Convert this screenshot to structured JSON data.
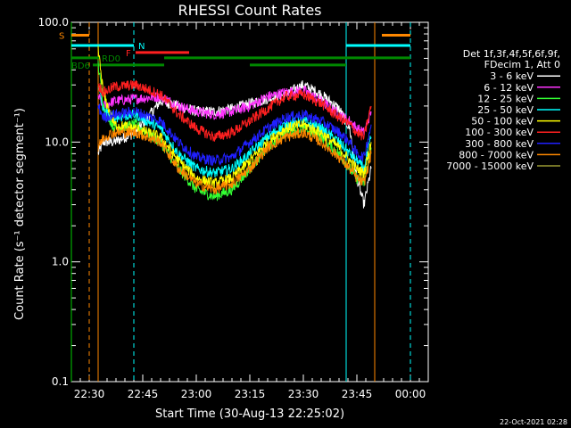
{
  "chart_data": {
    "type": "line",
    "title": "RHESSI Count Rates",
    "xlabel": "Start Time (30-Aug-13 22:25:02)",
    "ylabel": "Count Rate (s⁻¹ detector segment⁻¹)",
    "x_unit": "minutes after 22:25:02",
    "xlim": [
      0,
      100
    ],
    "ylim": [
      0.1,
      100
    ],
    "yscale": "log",
    "x_ticks": [
      {
        "t": 5,
        "label": "22:30"
      },
      {
        "t": 20,
        "label": "22:45"
      },
      {
        "t": 35,
        "label": "23:00"
      },
      {
        "t": 50,
        "label": "23:15"
      },
      {
        "t": 65,
        "label": "23:30"
      },
      {
        "t": 80,
        "label": "23:45"
      },
      {
        "t": 95,
        "label": "00:00"
      }
    ],
    "y_ticks": [
      {
        "v": 0.1,
        "label": "0.1"
      },
      {
        "v": 1,
        "label": "1.0"
      },
      {
        "v": 10,
        "label": "10.0"
      },
      {
        "v": 100,
        "label": "100.0"
      }
    ],
    "legend": {
      "position": "right",
      "header": [
        "Det 1f,3f,4f,5f,6f,9f,",
        "FDecim 1, Att 0"
      ]
    },
    "series": [
      {
        "name": "3 - 6 keV",
        "color": "#ffffff",
        "x": [
          7.5,
          9,
          12,
          18,
          25,
          30,
          35,
          40,
          45,
          50,
          55,
          60,
          65,
          70,
          75,
          78,
          80,
          82,
          84
        ],
        "y": [
          8,
          10,
          10,
          12,
          22,
          20,
          18,
          18,
          19,
          21,
          23,
          25,
          30,
          25,
          19,
          13,
          5,
          3,
          6
        ]
      },
      {
        "name": "6 - 12 keV",
        "color": "#ff33ff",
        "x": [
          7.5,
          9,
          12,
          18,
          25,
          30,
          35,
          40,
          45,
          50,
          55,
          60,
          65,
          70,
          75,
          78,
          80,
          82,
          84
        ],
        "y": [
          24,
          20,
          22,
          23,
          24,
          20,
          18,
          17,
          18,
          20,
          24,
          26,
          27,
          22,
          17,
          15,
          13,
          12,
          18
        ]
      },
      {
        "name": "12 - 25 keV",
        "color": "#33ff33",
        "x": [
          7.5,
          9,
          12,
          18,
          25,
          30,
          35,
          40,
          45,
          50,
          55,
          60,
          65,
          70,
          75,
          78,
          80,
          82,
          84
        ],
        "y": [
          45,
          20,
          13,
          14,
          10,
          6,
          4,
          3.5,
          4,
          6,
          9,
          12,
          13,
          11,
          8,
          6,
          5,
          4.5,
          9
        ]
      },
      {
        "name": "25 - 50 keV",
        "color": "#00ffff",
        "x": [
          7.5,
          9,
          12,
          18,
          25,
          30,
          35,
          40,
          45,
          50,
          55,
          60,
          65,
          70,
          75,
          78,
          80,
          82,
          84
        ],
        "y": [
          30,
          18,
          16,
          17,
          13,
          8,
          6,
          5.5,
          6,
          8,
          11,
          14,
          15,
          13,
          10,
          8,
          7,
          6,
          11
        ]
      },
      {
        "name": "50 - 100 keV",
        "color": "#ffff00",
        "x": [
          7.5,
          9,
          12,
          18,
          25,
          30,
          35,
          40,
          45,
          50,
          55,
          60,
          65,
          70,
          75,
          78,
          80,
          82,
          84
        ],
        "y": [
          60,
          25,
          14,
          13,
          11,
          7,
          5,
          4.5,
          5,
          7,
          10,
          13,
          14,
          12,
          9,
          7,
          6,
          5.5,
          10
        ]
      },
      {
        "name": "100 - 300 keV",
        "color": "#ff2020",
        "x": [
          7.5,
          9,
          12,
          18,
          25,
          30,
          35,
          40,
          45,
          50,
          55,
          60,
          65,
          70,
          75,
          78,
          80,
          82,
          84
        ],
        "y": [
          30,
          26,
          29,
          30,
          25,
          17,
          13,
          11,
          12,
          15,
          19,
          24,
          25,
          21,
          16,
          14,
          12,
          11,
          20
        ]
      },
      {
        "name": "300 - 800 keV",
        "color": "#2020ff",
        "x": [
          7.5,
          9,
          12,
          18,
          25,
          30,
          35,
          40,
          45,
          50,
          55,
          60,
          65,
          70,
          75,
          78,
          80,
          82,
          84
        ],
        "y": [
          20,
          16,
          17,
          18,
          15,
          10,
          7.5,
          7,
          7.5,
          10,
          13,
          16,
          17,
          15,
          12,
          10,
          8,
          7.5,
          14
        ]
      },
      {
        "name": "800 - 7000 keV",
        "color": "#ff8800",
        "x": [
          7.5,
          9,
          12,
          18,
          25,
          30,
          35,
          40,
          45,
          50,
          55,
          60,
          65,
          70,
          75,
          78,
          80,
          82,
          84
        ],
        "y": [
          9,
          11,
          12,
          12,
          10,
          6,
          4.5,
          4,
          4.5,
          6,
          9,
          11,
          12,
          10,
          7.5,
          6,
          5,
          4.5,
          8
        ]
      },
      {
        "name": "7000 - 15000 keV",
        "color": "#999933",
        "x": [],
        "y": []
      }
    ],
    "attenuator_bars": [
      {
        "label": "S",
        "color": "#ff8800",
        "v": 78,
        "segments": [
          [
            0,
            5
          ],
          [
            87,
            95
          ]
        ]
      },
      {
        "label": "N",
        "color": "#00ffff",
        "v": 64,
        "segments": [
          [
            0,
            17.5
          ],
          [
            77,
            95
          ]
        ]
      },
      {
        "label": "F",
        "color": "#ff2020",
        "v": 56,
        "segments": [
          [
            18,
            33
          ]
        ]
      },
      {
        "label": "RD0",
        "color": "#008800",
        "v": 50.5,
        "segments": [
          [
            0,
            8
          ],
          [
            26,
            95
          ]
        ]
      },
      {
        "label": "BD6",
        "color": "#008800",
        "v": 44,
        "segments": [
          [
            6,
            26
          ],
          [
            50,
            77
          ]
        ]
      }
    ],
    "vlines": [
      {
        "t": 0,
        "color": "#00cc00",
        "dash": false
      },
      {
        "t": 5,
        "color": "#ff8800",
        "dash": true
      },
      {
        "t": 7.5,
        "color": "#ff8800",
        "dash": false
      },
      {
        "t": 17.5,
        "color": "#00ffff",
        "dash": true
      },
      {
        "t": 77,
        "color": "#00ffff",
        "dash": false
      },
      {
        "t": 85,
        "color": "#ff8800",
        "dash": false
      },
      {
        "t": 95,
        "color": "#00ffff",
        "dash": true
      }
    ],
    "footer": "22-Oct-2021 02:28"
  }
}
